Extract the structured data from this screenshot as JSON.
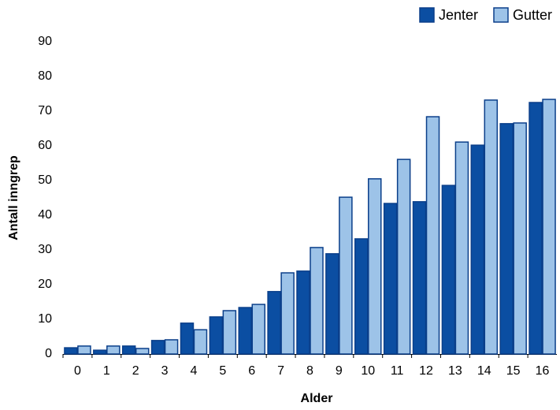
{
  "chart_data": {
    "type": "bar",
    "xlabel": "Alder",
    "ylabel": "Antall inngrep",
    "categories": [
      "0",
      "1",
      "2",
      "3",
      "4",
      "5",
      "6",
      "7",
      "8",
      "9",
      "10",
      "11",
      "12",
      "13",
      "14",
      "15",
      "16"
    ],
    "series": [
      {
        "name": "Jenter",
        "color": "#0b4ea2",
        "values": [
          1.8,
          1.1,
          2.3,
          3.9,
          8.9,
          10.7,
          13.4,
          18.0,
          23.9,
          28.9,
          33.2,
          43.4,
          43.9,
          48.6,
          60.2,
          66.4,
          72.5
        ]
      },
      {
        "name": "Gutter",
        "color": "#9dc3e8",
        "values": [
          2.3,
          2.3,
          1.6,
          4.1,
          7.0,
          12.5,
          14.3,
          23.4,
          30.7,
          45.2,
          50.5,
          56.1,
          68.4,
          61.1,
          73.2,
          66.6,
          73.4
        ]
      }
    ],
    "ylim": [
      0,
      90
    ],
    "yticks": [
      0,
      10,
      20,
      30,
      40,
      50,
      60,
      70,
      80,
      90
    ],
    "legend": "top-right",
    "grid": false
  }
}
